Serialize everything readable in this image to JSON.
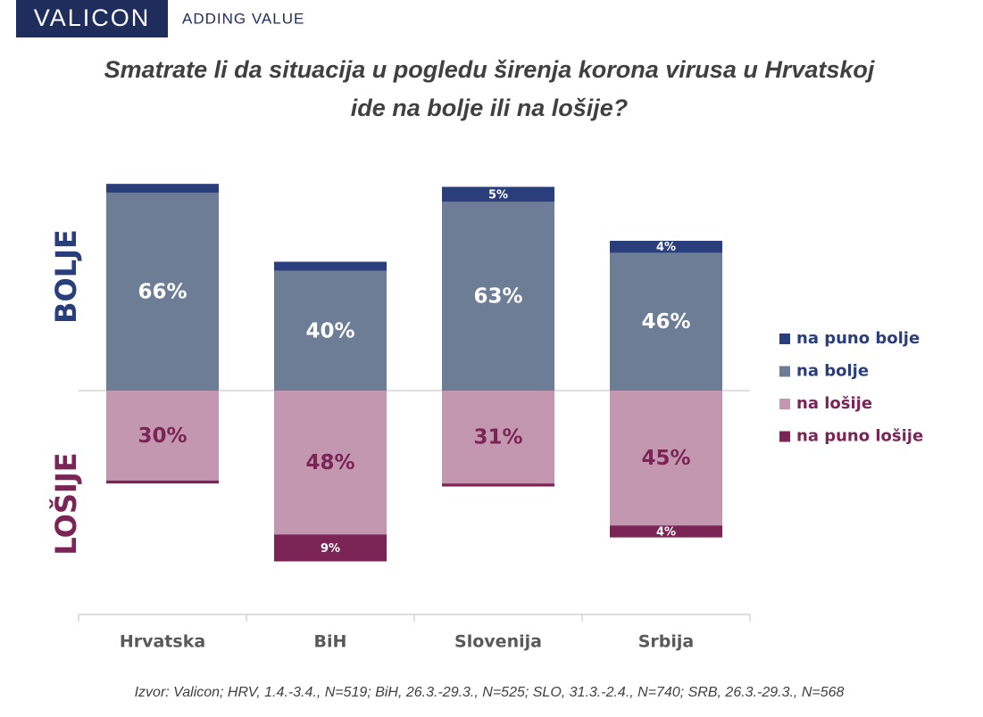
{
  "header": {
    "brand": "VALICON",
    "tagline": "ADDING VALUE"
  },
  "chart_data": {
    "type": "diverging-stacked-bar",
    "title": [
      "Smatrate li da situacija u pogledu širenja korona virusa u Hrvatskoj",
      "ide na bolje ili na lošije?"
    ],
    "positive_label": "BOLJE",
    "negative_label": "LOŠIJE",
    "categories": [
      "Hrvatska",
      "BiH",
      "Slovenija",
      "Srbija"
    ],
    "series": [
      {
        "name": "na puno bolje",
        "color": "#2b3e7c",
        "label_color": "#ffffff",
        "direction": "up",
        "values": [
          3,
          3,
          5,
          4
        ],
        "value_labels": [
          null,
          null,
          "5%",
          "4%"
        ]
      },
      {
        "name": "na bolje",
        "color": "#6d7d96",
        "label_color": "#ffffff",
        "direction": "up",
        "values": [
          66,
          40,
          63,
          46
        ],
        "value_labels": [
          "66%",
          "40%",
          "63%",
          "46%"
        ]
      },
      {
        "name": "na lošije",
        "color": "#c497b0",
        "label_color": "#7b2556",
        "direction": "down",
        "values": [
          30,
          48,
          31,
          45
        ],
        "value_labels": [
          "30%",
          "48%",
          "31%",
          "45%"
        ]
      },
      {
        "name": "na puno lošije",
        "color": "#7b2556",
        "label_color": "#ffffff",
        "direction": "down",
        "values": [
          1,
          9,
          1,
          4
        ],
        "value_labels": [
          null,
          "9%",
          null,
          "4%"
        ]
      }
    ],
    "legend": "right",
    "source": "Izvor: Valicon; HRV, 1.4.-3.4., N=519; BiH, 26.3.-29.3., N=525; SLO, 31.3.-2.4., N=740; SRB, 26.3.-29.3., N=568"
  }
}
